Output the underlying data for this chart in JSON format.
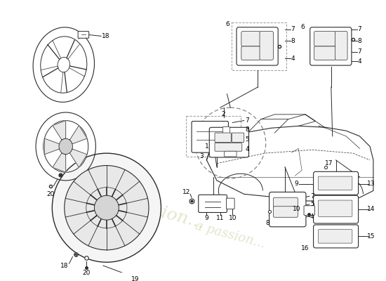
{
  "background_color": "#ffffff",
  "line_color": "#2a2a2a",
  "label_color": "#000000",
  "font_size": 6.5,
  "watermark_color1": "#c5d5a0",
  "watermark_color2": "#b8cc8a"
}
